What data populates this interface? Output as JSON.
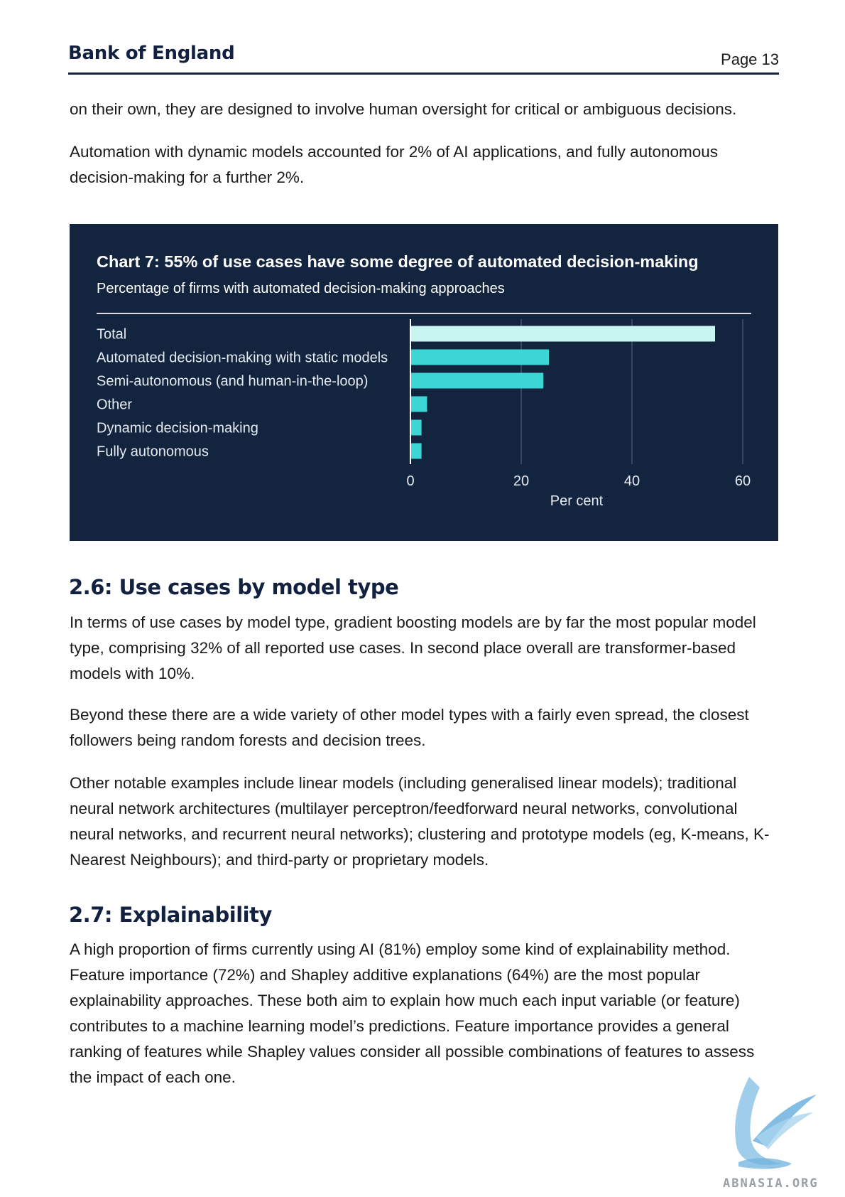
{
  "header": {
    "brand": "Bank of England",
    "page": "Page 13"
  },
  "intro": [
    "on their own, they are designed to involve human oversight for critical or ambiguous decisions.",
    "Automation with dynamic models accounted for 2% of AI applications, and fully autonomous decision-making for a further 2%."
  ],
  "chart": {
    "title": "Chart 7: 55% of use cases have some degree of automated decision-making",
    "subtitle": "Percentage of firms with automated decision-making approaches"
  },
  "chart_data": {
    "type": "bar",
    "orientation": "horizontal",
    "categories": [
      "Total",
      "Automated decision-making with static models",
      "Semi-autonomous (and human-in-the-loop)",
      "Other",
      "Dynamic decision-making",
      "Fully autonomous"
    ],
    "values": [
      55,
      25,
      24,
      3,
      2,
      2
    ],
    "bar_colors": [
      "#c8f5f2",
      "#3dd6d6",
      "#3dd6d6",
      "#3dd6d6",
      "#3dd6d6",
      "#3dd6d6"
    ],
    "xlabel": "Per cent",
    "xticks": [
      "0",
      "20",
      "40",
      "60"
    ],
    "xlim": [
      0,
      60
    ],
    "grid": true,
    "background": "#13243f"
  },
  "section_26": {
    "title": "2.6: Use cases by model type",
    "paragraphs": [
      "In terms of use cases by model type, gradient boosting models are by far the most popular model type, comprising 32% of all reported use cases. In second place overall are transformer-based models with 10%.",
      "Beyond these there are a wide variety of other model types with a fairly even spread, the closest followers being random forests and decision trees.",
      "Other notable examples include linear models (including generalised linear models); traditional neural network architectures (multilayer perceptron/feedforward neural networks, convolutional neural networks, and recurrent neural networks); clustering and prototype models (eg, K-means, K-Nearest Neighbours); and third-party or proprietary models."
    ]
  },
  "section_27": {
    "title": "2.7: Explainability",
    "paragraphs": [
      "A high proportion of firms currently using AI (81%) employ some kind of explainability method. Feature importance (72%) and Shapley additive explanations (64%) are the most popular explainability approaches. These both aim to explain how much each input variable (or feature) contributes to a machine learning model’s predictions. Feature importance provides a general ranking of features while Shapley values consider all possible combinations of features to assess the impact of each one."
    ]
  },
  "watermark": {
    "text": "ABNASIA.ORG",
    "icon": "griffin-logo-icon"
  }
}
